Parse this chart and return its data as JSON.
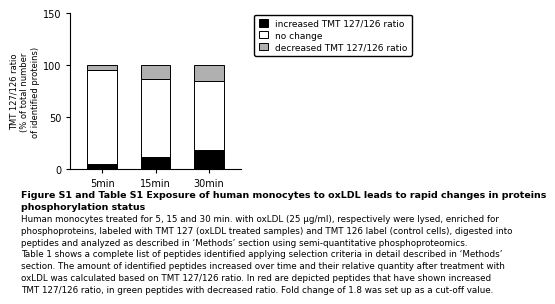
{
  "categories": [
    "5min",
    "15min",
    "30min"
  ],
  "increased": [
    5,
    12,
    18
  ],
  "no_change": [
    90,
    75,
    67
  ],
  "decreased": [
    5,
    13,
    15
  ],
  "colors": {
    "increased": "#000000",
    "no_change": "#ffffff",
    "decreased": "#b0b0b0"
  },
  "bar_edgecolor": "#000000",
  "ylim": [
    0,
    150
  ],
  "yticks": [
    0,
    50,
    100,
    150
  ],
  "ylabel": "TMT 127/126 ratio\n(% of total number\nof identified proteins)",
  "legend_labels": [
    "increased TMT 127/126 ratio",
    "no change",
    "decreased TMT 127/126 ratio"
  ],
  "caption_bold_line1": "Figure S1 and Table S1 Exposure of human monocytes to oxLDL leads to rapid changes in proteins",
  "caption_bold_line2": "phosphorylation status",
  "caption_normal": "Human monocytes treated for 5, 15 and 30 min. with oxLDL (25 μg/ml), respectively were lysed, enriched for\nphosphoproteins, labeled with TMT 127 (oxLDL treated samples) and TMT 126 label (control cells), digested into\npeptides and analyzed as described in ‘Methods’ section using semi-quantitative phosphoproteomics.\nTable 1 shows a complete list of peptides identified applying selection criteria in detail described in ‘Methods’\nsection. The amount of identified peptides increased over time and their relative quantity after treatment with\noxLDL was calculated based on TMT 127/126 ratio. In red are depicted peptides that have shown increased\nTMT 127/126 ratio, in green peptides with decreased ratio. Fold change of 1.8 was set up as a cut-off value."
}
